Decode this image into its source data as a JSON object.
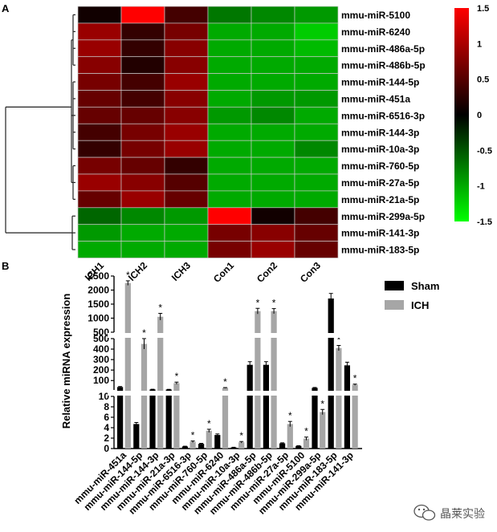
{
  "panels": {
    "a_label": "A",
    "b_label": "B"
  },
  "watermark": {
    "text": "晶莱实验",
    "icon": "wechat-icon"
  },
  "chart_data": [
    {
      "type": "heatmap",
      "panel": "A",
      "columns": [
        "ICH1",
        "ICH2",
        "ICH3",
        "Con1",
        "Con2",
        "Con3"
      ],
      "rows": [
        "mmu-miR-5100",
        "mmu-miR-6240",
        "mmu-miR-486a-5p",
        "mmu-miR-486b-5p",
        "mmu-miR-144-5p",
        "mmu-miR-451a",
        "mmu-miR-6516-3p",
        "mmu-miR-144-3p",
        "mmu-miR-10a-3p",
        "mmu-miR-760-5p",
        "mmu-miR-27a-5p",
        "mmu-miR-21a-5p",
        "mmu-miR-299a-5p",
        "mmu-miR-141-3p",
        "mmu-miR-183-5p"
      ],
      "values": [
        [
          0.1,
          1.6,
          0.4,
          -0.7,
          -0.8,
          -0.9
        ],
        [
          0.9,
          0.3,
          0.7,
          -1.0,
          -1.0,
          -1.2
        ],
        [
          0.9,
          0.3,
          0.8,
          -1.0,
          -1.0,
          -1.1
        ],
        [
          0.8,
          0.2,
          0.8,
          -1.0,
          -1.0,
          -1.0
        ],
        [
          0.7,
          0.4,
          0.9,
          -1.0,
          -1.0,
          -1.0
        ],
        [
          0.6,
          0.4,
          0.8,
          -1.0,
          -0.9,
          -0.9
        ],
        [
          0.6,
          0.6,
          0.8,
          -0.9,
          -0.8,
          -1.0
        ],
        [
          0.4,
          0.7,
          0.9,
          -1.0,
          -1.0,
          -1.0
        ],
        [
          0.3,
          0.7,
          0.9,
          -1.0,
          -1.0,
          -0.8
        ],
        [
          0.7,
          0.6,
          0.3,
          -1.0,
          -1.0,
          -1.0
        ],
        [
          0.9,
          0.8,
          0.5,
          -1.0,
          -1.0,
          -1.0
        ],
        [
          0.6,
          0.9,
          0.6,
          -1.0,
          -1.0,
          -1.0
        ],
        [
          -0.6,
          -0.8,
          -0.9,
          1.6,
          0.1,
          0.4
        ],
        [
          -0.9,
          -1.0,
          -1.0,
          0.7,
          0.8,
          0.6
        ],
        [
          -1.0,
          -1.0,
          -1.0,
          0.7,
          0.9,
          0.6
        ]
      ],
      "color_scale": {
        "low": "#00ff00",
        "mid": "#000000",
        "high": "#ff0000",
        "min": -1.5,
        "max": 1.5
      },
      "colorbar_ticks": [
        "1.5",
        "1",
        "0.5",
        "0",
        "-0.5",
        "-1",
        "-1.5"
      ],
      "dendrogram": "row clustering: two clusters (rows 1-12, rows 13-15)"
    },
    {
      "type": "bar",
      "panel": "B",
      "ylabel": "Relative miRNA expression",
      "categories": [
        "mmu-miR-451a",
        "mmu-miR-144-5p",
        "mmu-miR-144-3p",
        "mmu-miR-21a-3p",
        "mmu-miR-6516-3p",
        "mmu-miR-760-5p",
        "mmu-miR-6240",
        "mmu-miR-10a-3p",
        "mmu-miR-486a-5p",
        "mmu-miR-486b-5p",
        "mmu-miR-27a-5p",
        "mmu-miR-5100",
        "mmu-miR-299a-5p",
        "mmu-miR-183-5p",
        "mmu-miR-141-3p"
      ],
      "series": [
        {
          "name": "Sham",
          "color": "#000000",
          "values": [
            38,
            4.7,
            15,
            14,
            0.4,
            0.9,
            2.6,
            0.2,
            250,
            250,
            1.0,
            0.5,
            30,
            1700,
            245
          ],
          "errors": [
            5,
            0.3,
            2,
            2,
            0.05,
            0.1,
            0.2,
            0.05,
            30,
            30,
            0.1,
            0.05,
            4,
            180,
            30
          ]
        },
        {
          "name": "ICH",
          "color": "#a6a6a6",
          "values": [
            2250,
            450,
            1050,
            75,
            1.3,
            3.4,
            30,
            1.2,
            1250,
            1250,
            4.7,
            1.9,
            7.0,
            410,
            60
          ],
          "errors": [
            80,
            50,
            120,
            10,
            0.15,
            0.3,
            3,
            0.15,
            100,
            90,
            0.5,
            0.3,
            0.5,
            25,
            6
          ]
        }
      ],
      "significant": [
        true,
        true,
        true,
        true,
        true,
        true,
        true,
        true,
        true,
        true,
        true,
        true,
        true,
        true,
        true
      ],
      "significance_marker": "*",
      "y_segments": [
        {
          "range": [
            0,
            10
          ],
          "ticks": [
            "0",
            "2",
            "4",
            "6",
            "8",
            "10"
          ]
        },
        {
          "range": [
            10,
            500
          ],
          "ticks": [
            "100",
            "200",
            "300",
            "400",
            "500"
          ]
        },
        {
          "range": [
            500,
            2500
          ],
          "ticks": [
            "500",
            "1000",
            "1500",
            "2000",
            "2500"
          ]
        }
      ],
      "legend": {
        "position": "top-right",
        "labels": [
          "Sham",
          "ICH"
        ]
      }
    }
  ]
}
